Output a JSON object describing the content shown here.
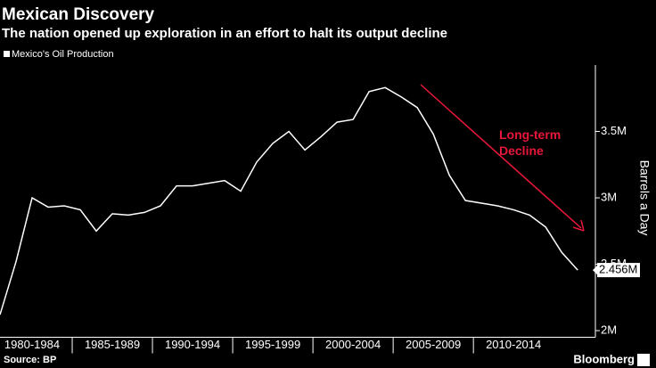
{
  "chart_data": {
    "type": "line",
    "title": "Mexican Discovery",
    "subtitle": "The nation opened up exploration in an effort to halt its output decline",
    "y_axis_label": "Barrels a Day",
    "source": "Source: BP",
    "brand": "Bloomberg",
    "annotation": "Long-term Decline",
    "annotation_color": "#e8173a",
    "x": [
      1980,
      1981,
      1982,
      1983,
      1984,
      1985,
      1986,
      1987,
      1988,
      1989,
      1990,
      1991,
      1992,
      1993,
      1994,
      1995,
      1996,
      1997,
      1998,
      1999,
      2000,
      2001,
      2002,
      2003,
      2004,
      2005,
      2006,
      2007,
      2008,
      2009,
      2010,
      2011,
      2012,
      2013,
      2014,
      2015,
      2016
    ],
    "series": [
      {
        "name": "Mexico's Oil Production",
        "color": "#ffffff",
        "values": [
          2120000,
          2520000,
          3000000,
          2930000,
          2940000,
          2910000,
          2750000,
          2880000,
          2870000,
          2890000,
          2940000,
          3090000,
          3090000,
          3110000,
          3130000,
          3050000,
          3270000,
          3410000,
          3500000,
          3360000,
          3460000,
          3570000,
          3590000,
          3800000,
          3830000,
          3760000,
          3680000,
          3480000,
          3170000,
          2980000,
          2960000,
          2940000,
          2910000,
          2870000,
          2780000,
          2590000,
          2456000
        ],
        "value_labels": [
          null,
          null,
          null,
          null,
          null,
          null,
          null,
          null,
          null,
          null,
          null,
          null,
          null,
          null,
          null,
          null,
          null,
          null,
          null,
          null,
          null,
          null,
          null,
          null,
          null,
          null,
          null,
          null,
          null,
          null,
          null,
          null,
          null,
          null,
          null,
          null,
          "2.456M"
        ]
      }
    ],
    "xlim": [
      1980,
      2017.1
    ],
    "xticks": [
      {
        "value": 1980,
        "label": "1980-1984"
      },
      {
        "value": 1985,
        "label": "1985-1989"
      },
      {
        "value": 1990,
        "label": "1990-1994"
      },
      {
        "value": 1995,
        "label": "1995-1999"
      },
      {
        "value": 2000,
        "label": "2000-2004"
      },
      {
        "value": 2005,
        "label": "2005-2009"
      },
      {
        "value": 2010,
        "label": "2010-2014"
      }
    ],
    "ylim": [
      1950000,
      4000000
    ],
    "yticks": [
      {
        "value": 2000000,
        "label": "2M"
      },
      {
        "value": 2500000,
        "label": "2.5M"
      },
      {
        "value": 3000000,
        "label": "3M"
      },
      {
        "value": 3500000,
        "label": "3.5M"
      }
    ],
    "grid": false
  }
}
